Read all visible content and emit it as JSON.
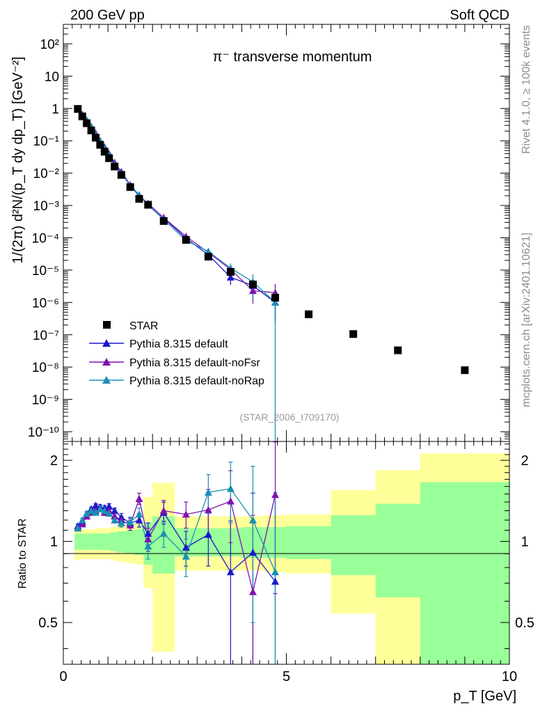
{
  "header": {
    "left": "200 GeV pp",
    "right": "Soft QCD"
  },
  "side_text": {
    "rivet": "Rivet 4.1.0, ≥ 100k events",
    "mcplots": "mcplots.cern.ch [arXiv:2401.10621]"
  },
  "colors": {
    "star": "#000000",
    "default": "#1a1acc",
    "noFsr": "#7f12b0",
    "noRap": "#1a8fb3",
    "band_inner": "#99ff99",
    "band_outer": "#ffff99"
  },
  "chart_data": {
    "type": "scatter",
    "title": "π⁻ transverse momentum",
    "watermark": "(STAR_2006_I709170)",
    "xlabel": "p_T [GeV]",
    "ylabel": "1/(2π) d²N/(p_T dy dp_T) [GeV⁻²]",
    "ratio_ylabel": "Ratio to STAR",
    "xlim": [
      0,
      10
    ],
    "ylim_log": [
      5e-11,
      400
    ],
    "ratio_ylim": [
      0.35,
      2.35
    ],
    "x_ticks": [
      "0",
      "5",
      "10"
    ],
    "y_ticks": [
      "10⁻¹⁰",
      "10⁻⁹",
      "10⁻⁸",
      "10⁻⁷",
      "10⁻⁶",
      "10⁻⁵",
      "10⁻⁴",
      "10⁻³",
      "10⁻²",
      "10⁻¹",
      "1",
      "10",
      "10²"
    ],
    "ratio_ticks": [
      "0.5",
      "1",
      "2"
    ],
    "legend": [
      "STAR",
      "Pythia 8.315 default",
      "Pythia 8.315 default-noFsr",
      "Pythia 8.315 default-noRap"
    ],
    "star": {
      "x": [
        0.325,
        0.425,
        0.525,
        0.625,
        0.725,
        0.825,
        0.925,
        1.025,
        1.15,
        1.3,
        1.5,
        1.7,
        1.9,
        2.25,
        2.75,
        3.25,
        3.75,
        4.25,
        4.75,
        5.5,
        6.5,
        7.5,
        9.0
      ],
      "y": [
        0.97,
        0.57,
        0.35,
        0.21,
        0.125,
        0.075,
        0.046,
        0.029,
        0.016,
        0.0088,
        0.0037,
        0.0016,
        0.00105,
        0.00033,
        8.6e-05,
        2.6e-05,
        8.8e-06,
        3.6e-06,
        1.4e-06,
        4.3e-07,
        1.05e-07,
        3.3e-08,
        8e-09
      ],
      "xerr": [
        0.05,
        0.05,
        0.05,
        0.05,
        0.05,
        0.05,
        0.05,
        0.05,
        0.05,
        0.1,
        0.1,
        0.1,
        0.1,
        0.25,
        0.25,
        0.25,
        0.25,
        0.25,
        0.25,
        0.5,
        0.5,
        0.5,
        1.0
      ],
      "band_outer": [
        [
          0.25,
          0.85,
          1.12
        ],
        [
          0.35,
          0.86,
          1.11
        ],
        [
          0.45,
          0.86,
          1.11
        ],
        [
          0.55,
          0.86,
          1.11
        ],
        [
          0.65,
          0.86,
          1.11
        ],
        [
          0.75,
          0.86,
          1.12
        ],
        [
          0.85,
          0.86,
          1.12
        ],
        [
          0.95,
          0.86,
          1.12
        ],
        [
          1.05,
          0.85,
          1.13
        ],
        [
          1.2,
          0.84,
          1.15
        ],
        [
          1.4,
          0.83,
          1.16
        ],
        [
          1.6,
          0.82,
          1.17
        ],
        [
          1.8,
          0.67,
          1.46
        ],
        [
          2.0,
          0.39,
          1.65
        ],
        [
          2.5,
          0.78,
          1.24
        ],
        [
          3.0,
          0.78,
          1.24
        ],
        [
          3.5,
          0.78,
          1.24
        ],
        [
          4.0,
          0.78,
          1.24
        ],
        [
          4.5,
          0.77,
          1.25
        ],
        [
          5.0,
          0.76,
          1.26
        ],
        [
          6.0,
          0.54,
          1.55
        ],
        [
          7.0,
          0.34,
          1.84
        ],
        [
          8.0,
          0.34,
          2.12
        ],
        [
          10.0,
          0.34,
          2.12
        ]
      ],
      "band_inner": [
        [
          0.25,
          0.93,
          1.07
        ],
        [
          0.35,
          0.93,
          1.07
        ],
        [
          0.45,
          0.93,
          1.07
        ],
        [
          0.55,
          0.93,
          1.07
        ],
        [
          0.65,
          0.93,
          1.07
        ],
        [
          0.75,
          0.93,
          1.07
        ],
        [
          0.85,
          0.93,
          1.07
        ],
        [
          0.95,
          0.93,
          1.07
        ],
        [
          1.05,
          0.92,
          1.08
        ],
        [
          1.2,
          0.91,
          1.09
        ],
        [
          1.4,
          0.9,
          1.1
        ],
        [
          1.6,
          0.89,
          1.11
        ],
        [
          1.8,
          0.82,
          1.18
        ],
        [
          2.0,
          0.76,
          1.24
        ],
        [
          2.5,
          0.88,
          1.12
        ],
        [
          3.0,
          0.88,
          1.12
        ],
        [
          3.5,
          0.88,
          1.12
        ],
        [
          4.0,
          0.87,
          1.13
        ],
        [
          4.5,
          0.87,
          1.13
        ],
        [
          5.0,
          0.86,
          1.14
        ],
        [
          6.0,
          0.75,
          1.25
        ],
        [
          7.0,
          0.62,
          1.38
        ],
        [
          8.0,
          0.34,
          1.66
        ],
        [
          10.0,
          0.34,
          1.66
        ]
      ]
    },
    "series": [
      {
        "name": "Pythia 8.315 default",
        "color": "#1a1acc",
        "x": [
          0.325,
          0.425,
          0.525,
          0.625,
          0.725,
          0.825,
          0.925,
          1.025,
          1.15,
          1.3,
          1.5,
          1.7,
          1.9,
          2.25,
          2.75,
          3.25,
          3.75,
          4.25,
          4.75
        ],
        "y": [
          1.0,
          0.65,
          0.43,
          0.28,
          0.17,
          0.1,
          0.064,
          0.04,
          0.021,
          0.011,
          0.0043,
          0.0019,
          0.00114,
          0.00041,
          9.5e-05,
          3e-05,
          6e-06,
          3.3e-06,
          1e-06
        ],
        "ratio": [
          1.14,
          1.18,
          1.27,
          1.32,
          1.36,
          1.34,
          1.33,
          1.35,
          1.3,
          1.23,
          1.17,
          1.2,
          1.07,
          1.28,
          0.95,
          1.06,
          0.77,
          0.91,
          0.71
        ],
        "ratio_err": [
          0.02,
          0.02,
          0.02,
          0.02,
          0.02,
          0.03,
          0.03,
          0.03,
          0.03,
          0.04,
          0.05,
          0.07,
          0.1,
          0.12,
          0.14,
          0.25,
          0.42,
          0.6,
          0.75
        ]
      },
      {
        "name": "Pythia 8.315 default-noFsr",
        "color": "#7f12b0",
        "x": [
          0.325,
          0.425,
          0.525,
          0.625,
          0.725,
          0.825,
          0.925,
          1.025,
          1.15,
          1.3,
          1.5,
          1.7,
          1.9,
          2.25,
          2.75,
          3.25,
          3.75,
          4.25,
          4.75
        ],
        "y": [
          1.0,
          0.6,
          0.41,
          0.27,
          0.17,
          0.1,
          0.06,
          0.038,
          0.021,
          0.011,
          0.0043,
          0.0021,
          0.0011,
          0.00042,
          0.00011,
          3.5e-05,
          1.05e-05,
          2.3e-06,
          2e-06
        ],
        "ratio": [
          1.12,
          1.16,
          1.24,
          1.28,
          1.3,
          1.32,
          1.28,
          1.3,
          1.24,
          1.2,
          1.15,
          1.44,
          1.02,
          1.3,
          1.26,
          1.31,
          1.41,
          0.65,
          1.49
        ],
        "ratio_err": [
          0.02,
          0.02,
          0.02,
          0.02,
          0.02,
          0.03,
          0.03,
          0.03,
          0.03,
          0.04,
          0.05,
          0.07,
          0.1,
          0.12,
          0.14,
          0.25,
          0.42,
          0.6,
          0.85
        ]
      },
      {
        "name": "Pythia 8.315 default-noRap",
        "color": "#1a8fb3",
        "x": [
          0.325,
          0.425,
          0.525,
          0.625,
          0.725,
          0.825,
          0.925,
          1.025,
          1.15,
          1.3,
          1.5,
          1.7,
          1.9,
          2.25,
          2.75,
          3.25,
          3.75,
          4.25,
          4.75
        ],
        "y": [
          1.0,
          0.63,
          0.44,
          0.28,
          0.16,
          0.1,
          0.059,
          0.036,
          0.019,
          0.0098,
          0.0041,
          0.0021,
          0.00101,
          0.00037,
          8.2e-05,
          3.8e-05,
          1.15e-05,
          4.3e-06,
          1e-06
        ],
        "ratio": [
          1.12,
          1.2,
          1.27,
          1.3,
          1.28,
          1.32,
          1.3,
          1.27,
          1.2,
          1.17,
          1.18,
          1.26,
          0.96,
          1.07,
          0.88,
          1.52,
          1.57,
          1.2,
          0.77
        ],
        "ratio_err": [
          0.02,
          0.02,
          0.02,
          0.02,
          0.02,
          0.03,
          0.03,
          0.03,
          0.03,
          0.04,
          0.05,
          0.07,
          0.1,
          0.12,
          0.14,
          0.25,
          0.4,
          0.7,
          0.75
        ]
      }
    ]
  }
}
